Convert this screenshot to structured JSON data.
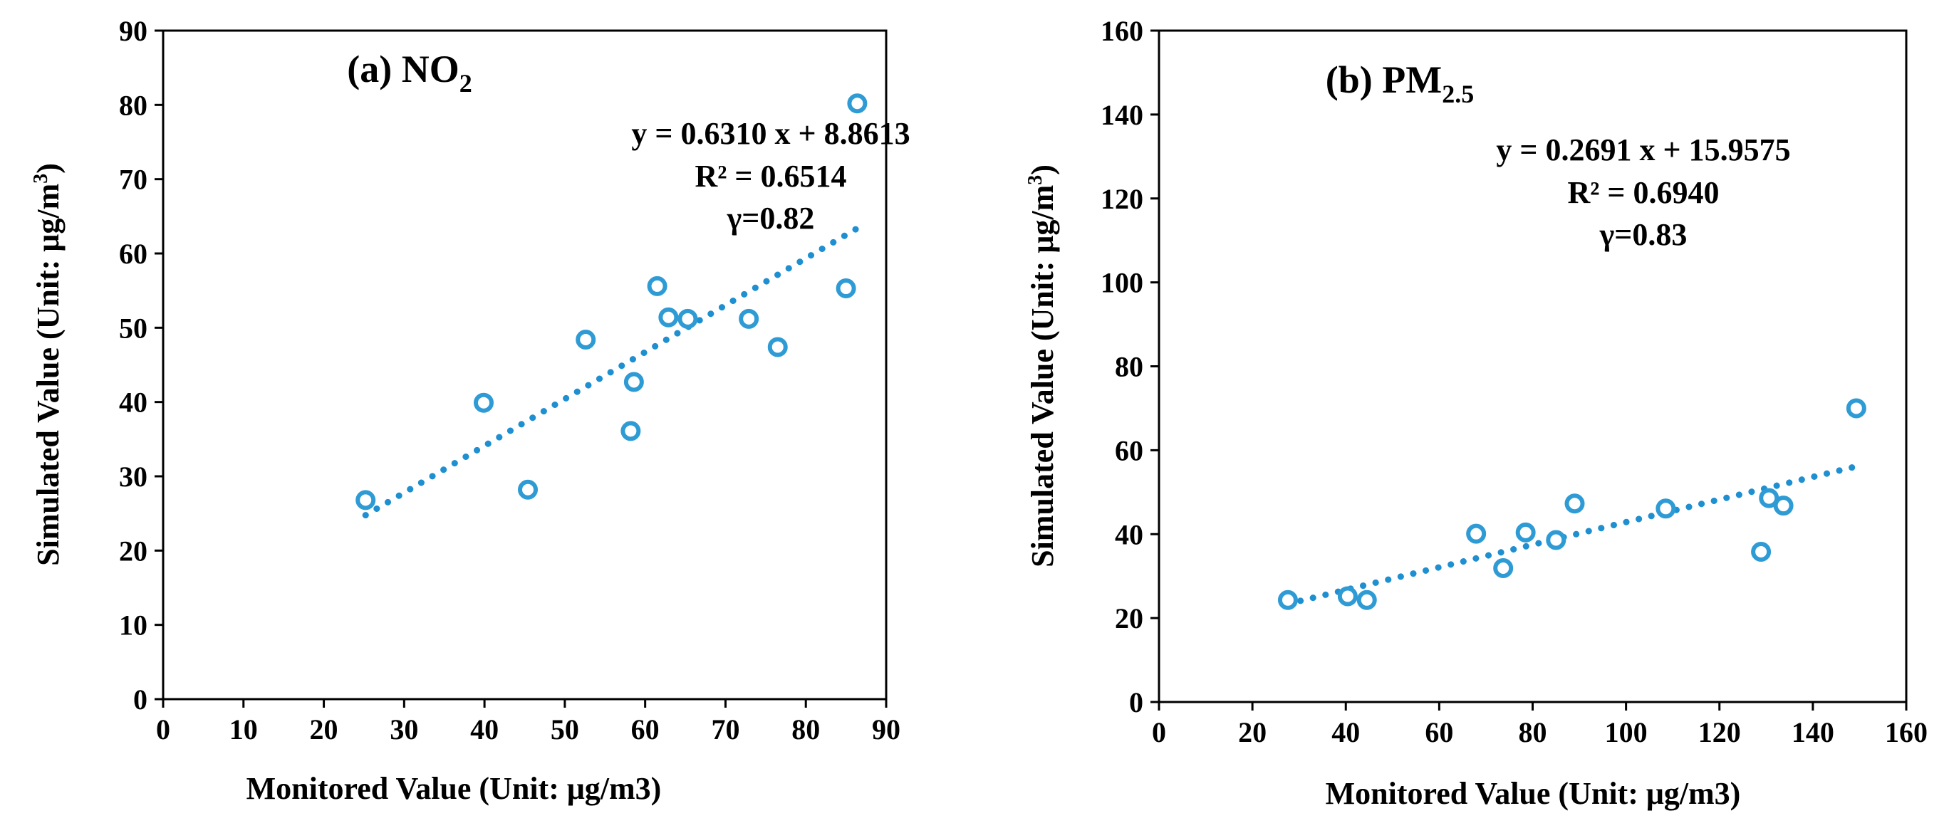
{
  "colors": {
    "marker": "#2F9BD5",
    "trendline": "#1E8FD0",
    "axis": "#000000"
  },
  "chart_data": [
    {
      "type": "scatter",
      "title": "(a) NO",
      "title_subscript": "2",
      "xlabel": "Monitored Value (Unit: μg/m3)",
      "ylabel": "Simulated Value (Unit: μg/m",
      "ylabel_superscript": "3",
      "ylabel_suffix": ")",
      "xlim": [
        0,
        90
      ],
      "ylim": [
        0,
        90
      ],
      "xticks": [
        0,
        10,
        20,
        30,
        40,
        50,
        60,
        70,
        80,
        90
      ],
      "yticks": [
        0,
        10,
        20,
        30,
        40,
        50,
        60,
        70,
        80,
        90
      ],
      "x": [
        25.2,
        39.9,
        45.4,
        52.6,
        58.2,
        58.6,
        61.5,
        62.9,
        65.3,
        72.9,
        76.5,
        85.0,
        86.4
      ],
      "y": [
        26.8,
        39.9,
        28.2,
        48.4,
        36.1,
        42.7,
        55.6,
        51.4,
        51.2,
        51.2,
        47.4,
        55.3,
        80.2
      ],
      "trendline": {
        "slope": 0.631,
        "intercept": 8.8613,
        "x_range": [
          25.2,
          86.4
        ]
      },
      "annotations": [
        "y = 0.6310 x + 8.8613",
        "R² = 0.6514",
        "γ=0.82"
      ]
    },
    {
      "type": "scatter",
      "title": "(b) PM",
      "title_subscript": "2.5",
      "xlabel": "Monitored Value (Unit: μg/m3)",
      "ylabel": "Simulated Value (Unit: μg/m",
      "ylabel_superscript": "3",
      "ylabel_suffix": ")",
      "xlim": [
        0,
        160
      ],
      "ylim": [
        0,
        160
      ],
      "xticks": [
        0,
        20,
        40,
        60,
        80,
        100,
        120,
        140,
        160
      ],
      "yticks": [
        0,
        20,
        40,
        60,
        80,
        100,
        120,
        140,
        160
      ],
      "x": [
        27.6,
        40.4,
        44.5,
        67.9,
        73.7,
        78.5,
        85.0,
        89.0,
        108.5,
        128.9,
        130.6,
        133.7,
        149.3
      ],
      "y": [
        24.3,
        25.2,
        24.3,
        40.1,
        31.9,
        40.4,
        38.6,
        47.3,
        46.1,
        35.8,
        48.6,
        46.8,
        70.0
      ],
      "trendline": {
        "slope": 0.2691,
        "intercept": 15.9575,
        "x_range": [
          27.6,
          149.3
        ]
      },
      "annotations": [
        "y = 0.2691 x + 15.9575",
        "R² = 0.6940",
        "γ=0.83"
      ]
    }
  ]
}
